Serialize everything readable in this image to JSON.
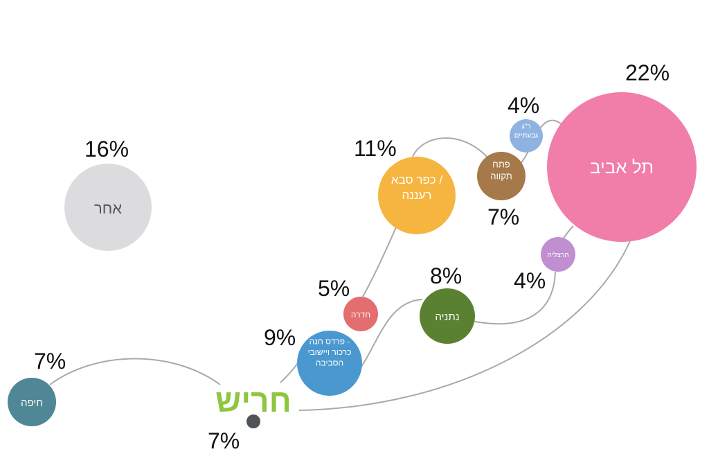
{
  "diagram": {
    "center_logo": "חריש",
    "center_percent": "7%",
    "nodes": [
      {
        "id": "tel-aviv",
        "label_lines": [
          "תל אביב"
        ],
        "percent": "22%",
        "color": "#f07ea8"
      },
      {
        "id": "other",
        "label_lines": [
          "אחר"
        ],
        "percent": "16%",
        "color": "#dcdcde",
        "dark_text": true
      },
      {
        "id": "kfar-saba",
        "label_lines": [
          "כפר סבא /",
          "רעננה"
        ],
        "percent": "11%",
        "color": "#f5b540"
      },
      {
        "id": "pardes-hana",
        "label_lines": [
          "פרדס חנה -",
          "כרכור ויישובי",
          "הסביבה"
        ],
        "percent": "9%",
        "color": "#4a98cf"
      },
      {
        "id": "netanya",
        "label_lines": [
          "נתניה"
        ],
        "percent": "8%",
        "color": "#5a8132"
      },
      {
        "id": "petah-tikva",
        "label_lines": [
          "פתח",
          "תקווה"
        ],
        "percent": "7%",
        "color": "#a5794a"
      },
      {
        "id": "haifa",
        "label_lines": [
          "חיפה"
        ],
        "percent": "7%",
        "color": "#4f8796"
      },
      {
        "id": "hadera",
        "label_lines": [
          "חדרה"
        ],
        "percent": "5%",
        "color": "#e46d6f"
      },
      {
        "id": "ramat-gan",
        "label_lines": [
          "ר\"ג",
          "גבעתיים"
        ],
        "percent": "4%",
        "color": "#8fb3e1"
      },
      {
        "id": "herzliya",
        "label_lines": [
          "הרצליה"
        ],
        "percent": "4%",
        "color": "#c08fd2"
      }
    ]
  }
}
